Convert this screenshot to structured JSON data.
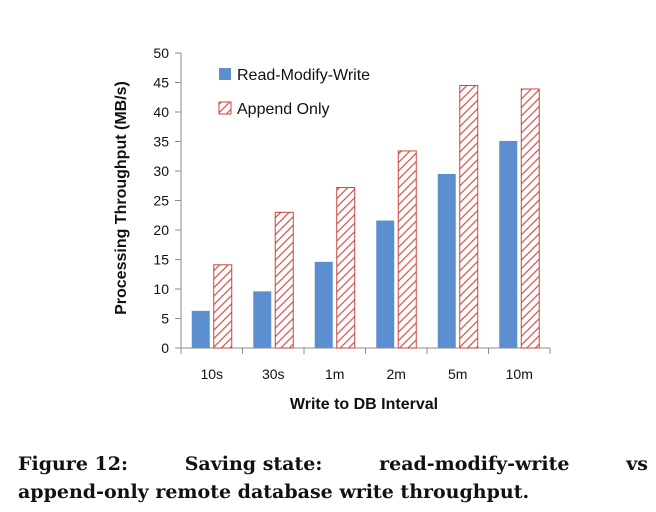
{
  "chart_data": {
    "type": "bar",
    "categories": [
      "10s",
      "30s",
      "1m",
      "2m",
      "5m",
      "10m"
    ],
    "series": [
      {
        "name": "Read-Modify-Write",
        "values": [
          6.3,
          9.6,
          14.6,
          21.6,
          29.5,
          35.1
        ],
        "color": "#5b8fd0",
        "pattern": "solid"
      },
      {
        "name": "Append Only",
        "values": [
          14.1,
          23.0,
          27.2,
          33.4,
          44.5,
          43.9
        ],
        "color": "#c9453f",
        "pattern": "diagonal-hatch"
      }
    ],
    "xlabel": "Write to DB Interval",
    "ylabel": "Processing Throughput (MB/s)",
    "ylim": [
      0,
      50
    ],
    "yticks": [
      "0",
      "5",
      "10",
      "15",
      "20",
      "25",
      "30",
      "35",
      "40",
      "45",
      "50"
    ],
    "grid": false,
    "legend_position": "top-left"
  },
  "caption": {
    "part1": "Figure 12:",
    "part2": "Saving state:",
    "part3": "read-modify-write",
    "part4": "vs",
    "line2": "append-only remote database write throughput."
  }
}
